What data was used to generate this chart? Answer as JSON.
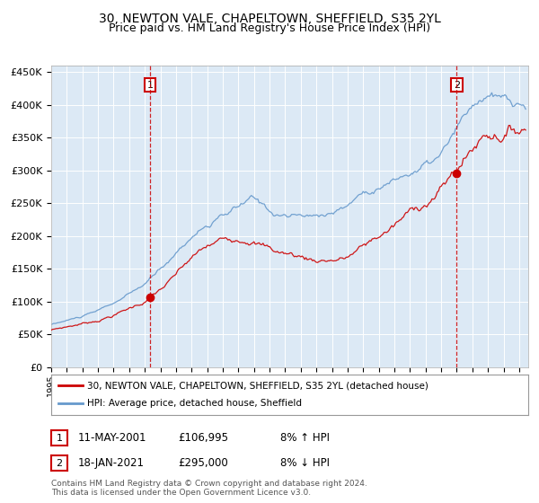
{
  "title": "30, NEWTON VALE, CHAPELTOWN, SHEFFIELD, S35 2YL",
  "subtitle": "Price paid vs. HM Land Registry's House Price Index (HPI)",
  "title_fontsize": 10,
  "subtitle_fontsize": 9,
  "bg_color": "#dce9f5",
  "fig_bg_color": "#ffffff",
  "line_color_red": "#cc0000",
  "line_color_blue": "#6699cc",
  "grid_color": "#ffffff",
  "marker1_price": 106995,
  "marker2_price": 295000,
  "vline_color": "#cc0000",
  "annotation_box_color": "#cc0000",
  "ylim_min": 0,
  "ylim_max": 460000,
  "yticks": [
    0,
    50000,
    100000,
    150000,
    200000,
    250000,
    300000,
    350000,
    400000,
    450000
  ],
  "ytick_labels": [
    "£0",
    "£50K",
    "£100K",
    "£150K",
    "£200K",
    "£250K",
    "£300K",
    "£350K",
    "£400K",
    "£450K"
  ],
  "legend_entry1": "30, NEWTON VALE, CHAPELTOWN, SHEFFIELD, S35 2YL (detached house)",
  "legend_entry2": "HPI: Average price, detached house, Sheffield",
  "footer1": "Contains HM Land Registry data © Crown copyright and database right 2024.",
  "footer2": "This data is licensed under the Open Government Licence v3.0.",
  "note1_box": "1",
  "note1_date": "11-MAY-2001",
  "note1_price": "£106,995",
  "note1_pct": "8% ↑ HPI",
  "note2_box": "2",
  "note2_date": "18-JAN-2021",
  "note2_price": "£295,000",
  "note2_pct": "8% ↓ HPI"
}
